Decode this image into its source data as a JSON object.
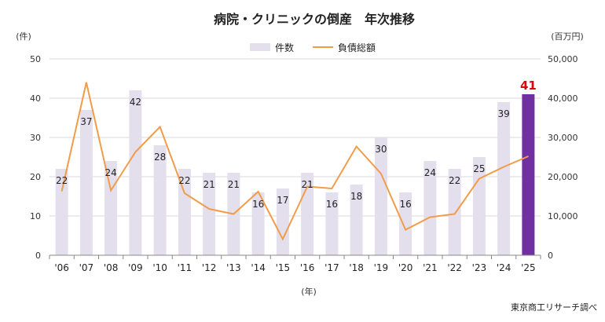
{
  "chart_data": {
    "type": "bar+line",
    "title": "病院・クリニックの倒産　年次推移",
    "left_unit": "(件)",
    "right_unit": "(百万円)",
    "xlabel": "(年)",
    "source": "東京商工リサーチ調べ",
    "categories": [
      "'06",
      "'07",
      "'08",
      "'09",
      "'10",
      "'11",
      "'12",
      "'13",
      "'14",
      "'15",
      "'16",
      "'17",
      "'18",
      "'19",
      "'20",
      "'21",
      "'22",
      "'23",
      "'24",
      "'25"
    ],
    "left_ylim": [
      0,
      50
    ],
    "left_ticks": [
      "0",
      "10",
      "20",
      "30",
      "40",
      "50"
    ],
    "right_ylim": [
      0,
      50000
    ],
    "right_ticks": [
      "0",
      "10,000",
      "20,000",
      "30,000",
      "40,000",
      "50,000"
    ],
    "grid": true,
    "legend_placement": "top",
    "series": [
      {
        "name": "件数",
        "type": "bar",
        "axis": "left",
        "color": "#e3dfed",
        "highlight_color": "#7030a0",
        "values": [
          22,
          37,
          24,
          42,
          28,
          22,
          21,
          21,
          16,
          17,
          21,
          16,
          18,
          30,
          16,
          24,
          22,
          25,
          39,
          41
        ]
      },
      {
        "name": "負債総額",
        "type": "line",
        "axis": "right",
        "color": "#f29c4a",
        "values": [
          16300,
          44000,
          16500,
          26300,
          32700,
          15800,
          11800,
          10500,
          16200,
          4100,
          17500,
          17000,
          27700,
          20800,
          6500,
          9700,
          10500,
          19500,
          22500,
          25200
        ]
      }
    ],
    "highlight_label_color": "#e00000"
  }
}
